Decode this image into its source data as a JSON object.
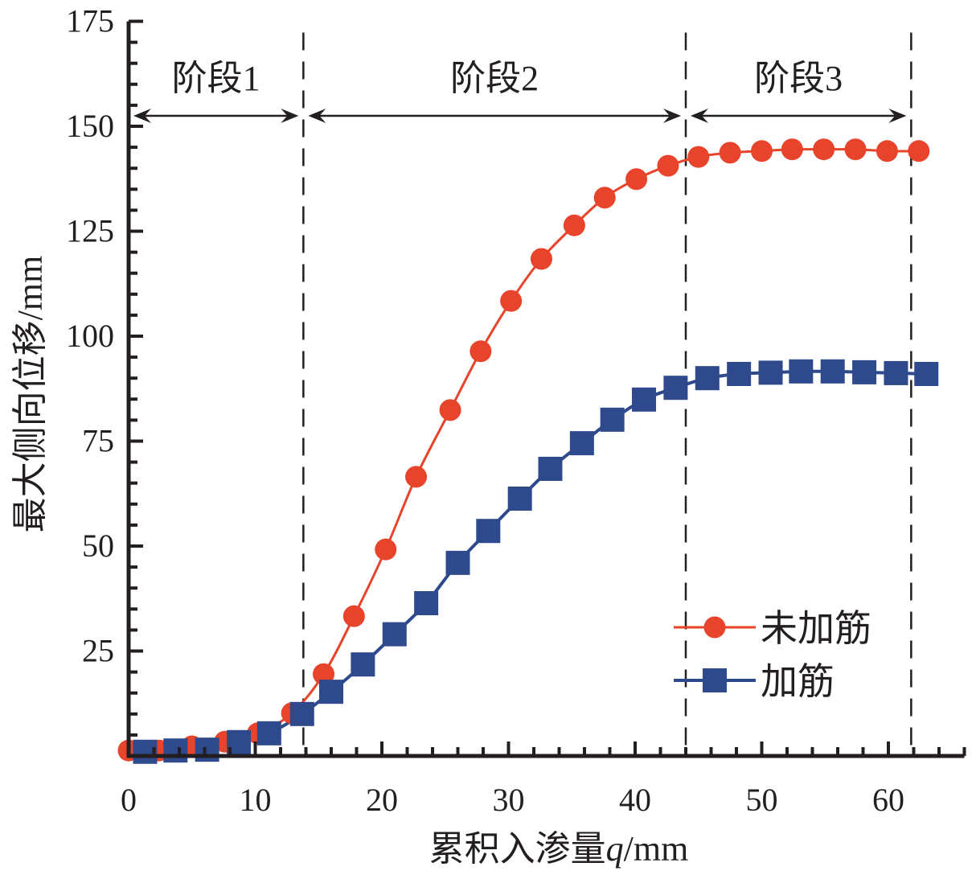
{
  "chart_data": {
    "type": "line",
    "xlabel": "累积入渗量q/mm",
    "xlabel_parts": {
      "prefix": "累积入渗量",
      "var": "q",
      "unit": "/mm"
    },
    "ylabel": "最大侧向位移/mm",
    "xlim": [
      0,
      66
    ],
    "ylim": [
      0,
      175
    ],
    "x_ticks": [
      0,
      10,
      20,
      30,
      40,
      50,
      60
    ],
    "x_tick_labels": [
      "0",
      "10",
      "20",
      "30",
      "40",
      "50",
      "60"
    ],
    "y_ticks": [
      25,
      50,
      75,
      100,
      125,
      150,
      175
    ],
    "y_tick_labels": [
      "25",
      "50",
      "75",
      "100",
      "125",
      "150",
      "175"
    ],
    "grid": false,
    "legend_placement": "bottom-right",
    "stage_boundaries": [
      13.8,
      44.0,
      61.8
    ],
    "stages": [
      {
        "label": "阶段1",
        "from": 0,
        "to": 13.8
      },
      {
        "label": "阶段2",
        "from": 13.8,
        "to": 44.0
      },
      {
        "label": "阶段3",
        "from": 44.0,
        "to": 61.8
      }
    ],
    "series": [
      {
        "name": "未加筋",
        "color": "#e8432b",
        "marker": "circle",
        "x": [
          0,
          2.4,
          5.0,
          7.6,
          10.2,
          12.9,
          15.4,
          17.8,
          20.3,
          22.7,
          25.4,
          27.8,
          30.2,
          32.6,
          35.2,
          37.6,
          40.1,
          42.6,
          45.0,
          47.5,
          50.0,
          52.4,
          54.9,
          57.4,
          59.9,
          62.4
        ],
        "y": [
          1.3,
          1.3,
          2.3,
          3.4,
          5.4,
          10.2,
          19.5,
          33.3,
          49.2,
          66.5,
          82.4,
          96.4,
          108.4,
          118.4,
          126.4,
          133.0,
          137.4,
          140.6,
          142.7,
          143.7,
          144.1,
          144.5,
          144.5,
          144.5,
          144.1,
          144.1
        ]
      },
      {
        "name": "加筋",
        "color": "#2e4a8c",
        "marker": "square",
        "x": [
          1.3,
          3.7,
          6.2,
          8.7,
          11.1,
          13.7,
          16.0,
          18.5,
          21.0,
          23.5,
          26.0,
          28.4,
          30.9,
          33.3,
          35.8,
          38.2,
          40.7,
          43.2,
          45.7,
          48.2,
          50.7,
          53.1,
          55.6,
          58.1,
          60.6,
          63.0
        ],
        "y": [
          1.0,
          1.3,
          1.5,
          3.3,
          5.4,
          10.0,
          15.3,
          21.8,
          29.0,
          36.4,
          46.0,
          53.6,
          61.3,
          68.4,
          74.5,
          80.1,
          84.9,
          87.7,
          90.0,
          91.0,
          91.3,
          91.6,
          91.6,
          91.4,
          91.2,
          91.0
        ]
      }
    ]
  }
}
